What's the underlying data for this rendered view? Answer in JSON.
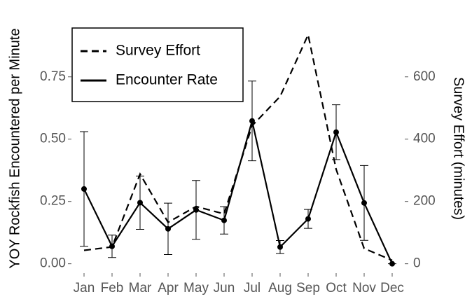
{
  "chart_data": {
    "type": "line",
    "ylabel": "YOY Rockfish Encountered per Minute",
    "y2label": "Survey Effort (minutes)",
    "categories": [
      "Jan",
      "Feb",
      "Mar",
      "Apr",
      "May",
      "Jun",
      "Jul",
      "Aug",
      "Sep",
      "Oct",
      "Nov",
      "Dec"
    ],
    "series": [
      {
        "name": "Survey Effort",
        "color": "#000000",
        "dash": "dashed",
        "axis": "y2",
        "values": [
          43,
          54,
          288,
          133,
          184,
          160,
          443,
          537,
          735,
          303,
          49,
          11
        ]
      },
      {
        "name": "Encounter Rate",
        "color": "#000000",
        "dash": "solid",
        "axis": "y",
        "values": [
          0.3,
          0.07,
          0.245,
          0.14,
          0.216,
          0.174,
          0.573,
          0.067,
          0.18,
          0.528,
          0.244,
          0
        ],
        "errors": [
          0.23,
          0.045,
          0.107,
          0.103,
          0.118,
          0.055,
          0.16,
          0.026,
          0.038,
          0.11,
          0.15,
          0
        ]
      }
    ],
    "ylim": [
      -0.0375,
      0.96
    ],
    "yticks": [
      {
        "value": 0,
        "label": "0.00"
      },
      0.25,
      {
        "value": 0.5,
        "label": "0.50"
      },
      0.75
    ],
    "y2lim": [
      -30,
      768
    ],
    "y2ticks": [
      0,
      200,
      400,
      600
    ],
    "legend": "top-left"
  }
}
